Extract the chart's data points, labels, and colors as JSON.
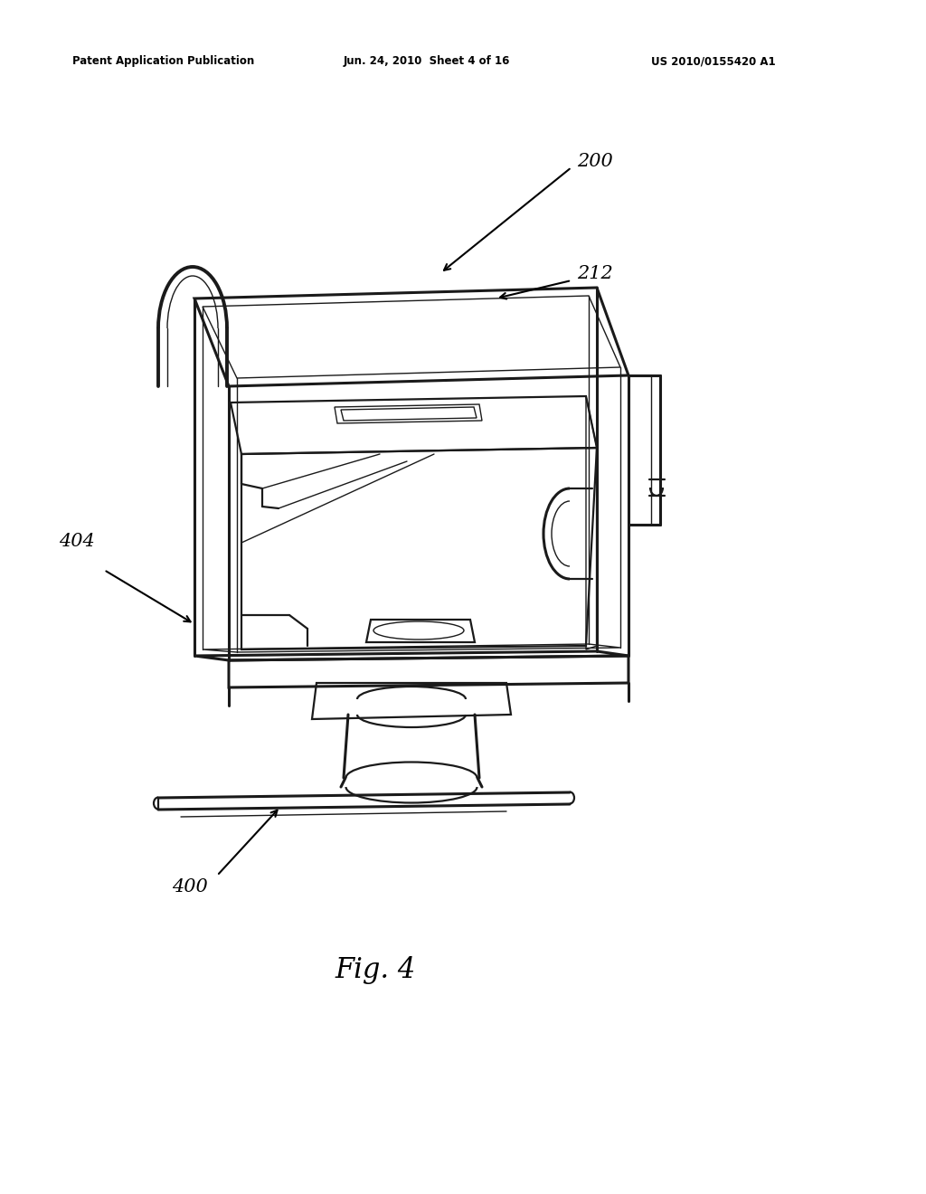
{
  "bg_color": "#ffffff",
  "line_color": "#1a1a1a",
  "header_left": "Patent Application Publication",
  "header_center": "Jun. 24, 2010  Sheet 4 of 16",
  "header_right": "US 2010/0155420 A1",
  "figure_label": "Fig. 4",
  "lw_main": 1.6,
  "lw_thick": 2.2,
  "lw_thin": 1.0,
  "lw_xtra": 2.8
}
